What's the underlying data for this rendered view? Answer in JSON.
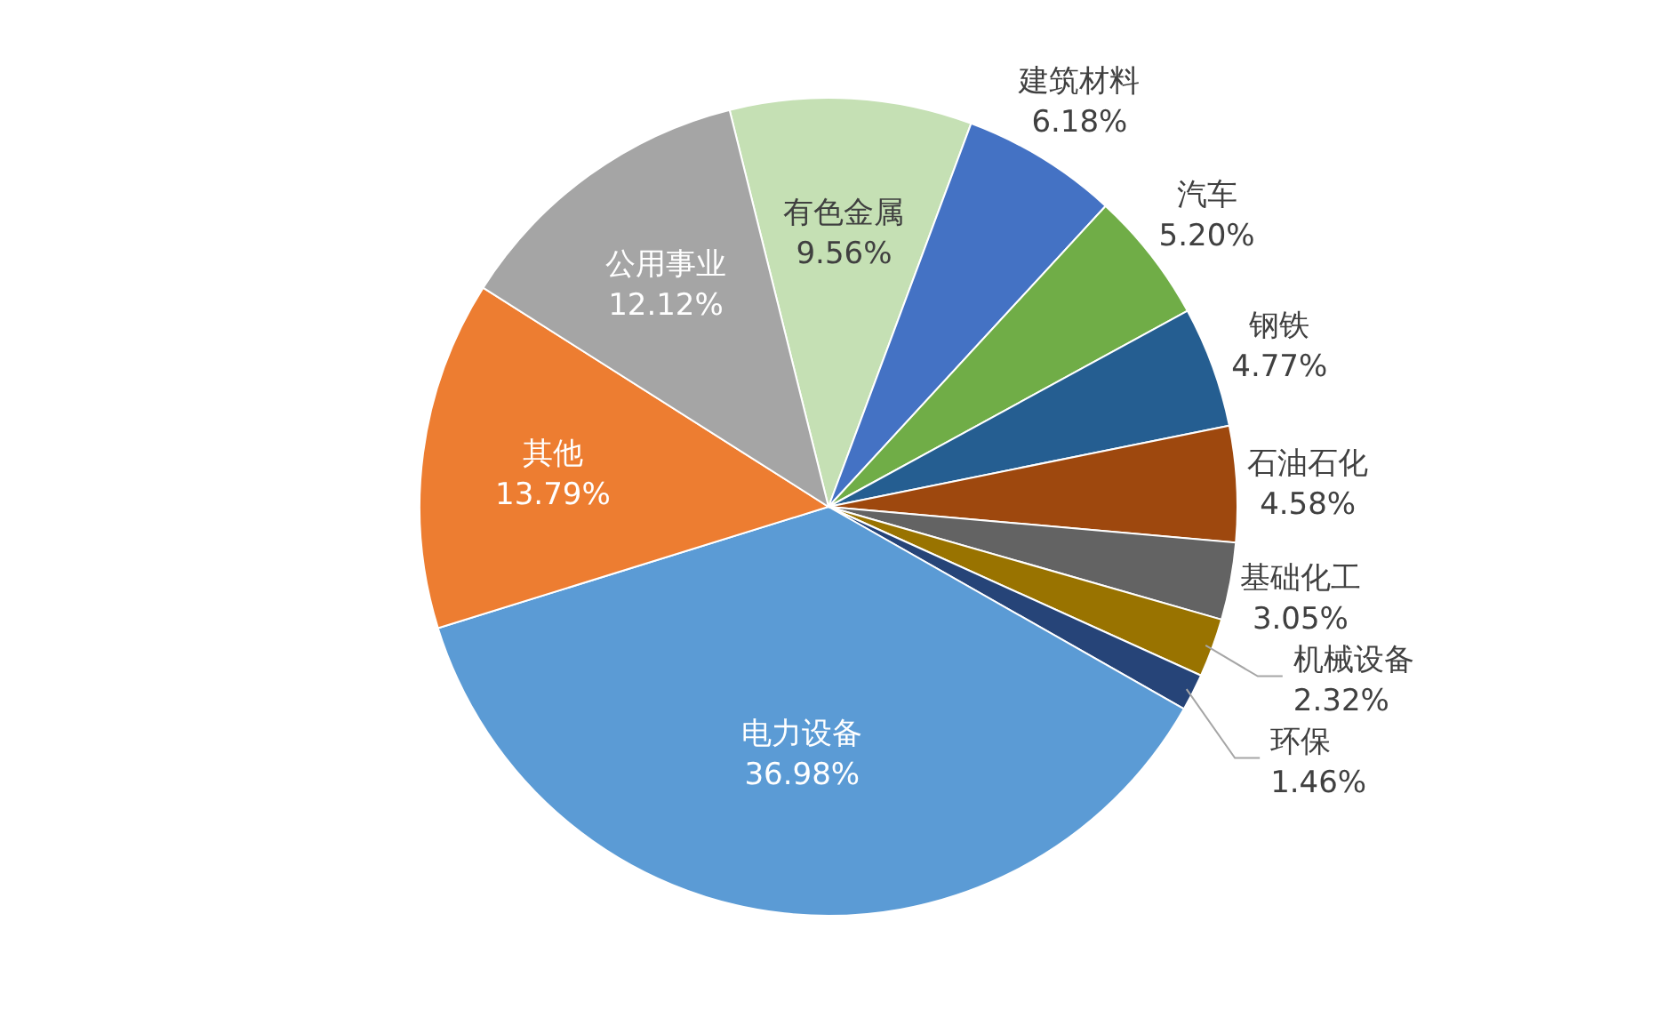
{
  "chart_data": {
    "type": "pie",
    "categories": [
      "有色金属",
      "建筑材料",
      "汽车",
      "钢铁",
      "石油石化",
      "基础化工",
      "机械设备",
      "环保",
      "电力设备",
      "其他",
      "公用事业"
    ],
    "values": [
      9.56,
      6.18,
      5.2,
      4.77,
      4.58,
      3.05,
      2.32,
      1.46,
      36.98,
      13.79,
      12.12
    ],
    "value_labels": [
      "9.56%",
      "6.18%",
      "5.20%",
      "4.77%",
      "4.58%",
      "3.05%",
      "2.32%",
      "1.46%",
      "36.98%",
      "13.79%",
      "12.12%"
    ],
    "colors": [
      "#c5e0b4",
      "#4472c4",
      "#70ad47",
      "#255e91",
      "#9e480e",
      "#636363",
      "#997300",
      "#264478",
      "#5b9bd5",
      "#ed7d31",
      "#a5a5a5"
    ]
  }
}
